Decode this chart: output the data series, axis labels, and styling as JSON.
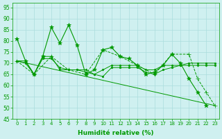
{
  "background_color": "#cff0f0",
  "grid_color": "#aadddd",
  "line_color": "#009900",
  "xlabel": "Humidité relative (%)",
  "ylim": [
    45,
    97
  ],
  "xlim": [
    -0.5,
    23.5
  ],
  "yticks": [
    45,
    50,
    55,
    60,
    65,
    70,
    75,
    80,
    85,
    90,
    95
  ],
  "xticks": [
    0,
    1,
    2,
    3,
    4,
    5,
    6,
    7,
    8,
    9,
    10,
    11,
    12,
    13,
    14,
    15,
    16,
    17,
    18,
    19,
    20,
    21,
    22,
    23
  ],
  "series": [
    {
      "x": [
        0,
        1,
        2,
        3,
        4,
        5,
        6,
        7,
        8,
        9,
        10,
        11,
        12,
        13,
        14,
        15,
        16,
        17,
        18,
        19,
        20,
        21,
        22
      ],
      "y": [
        81,
        71,
        65,
        73,
        86,
        79,
        87,
        78,
        65,
        67,
        76,
        77,
        73,
        72,
        69,
        65,
        66,
        69,
        74,
        70,
        63,
        57,
        51
      ],
      "marker": "*",
      "markersize": 4,
      "linestyle": "-",
      "linewidth": 0.8
    },
    {
      "x": [
        0,
        1,
        2,
        3,
        4,
        5,
        6,
        7,
        8,
        9,
        10,
        11,
        12,
        13,
        14,
        15,
        16,
        17,
        18,
        19,
        20,
        21,
        22,
        23
      ],
      "y": [
        71,
        71,
        65,
        73,
        73,
        67,
        67,
        67,
        67,
        65,
        67,
        69,
        69,
        69,
        69,
        67,
        67,
        69,
        69,
        69,
        69,
        69,
        69,
        69
      ],
      "marker": "D",
      "markersize": 1.5,
      "linestyle": "-",
      "linewidth": 0.7
    },
    {
      "x": [
        0,
        1,
        2,
        3,
        4,
        5,
        6,
        7,
        8,
        9,
        10,
        11,
        12,
        13,
        14,
        15,
        16,
        17,
        18,
        19,
        20,
        21,
        22,
        23
      ],
      "y": [
        71,
        70,
        65,
        72,
        72,
        68,
        67,
        67,
        66,
        65,
        64,
        68,
        68,
        68,
        68,
        66,
        65,
        67,
        68,
        69,
        70,
        70,
        70,
        70
      ],
      "marker": "s",
      "markersize": 1.5,
      "linestyle": "-",
      "linewidth": 0.7
    },
    {
      "x": [
        0,
        2,
        4,
        6,
        8,
        10,
        12,
        14,
        16,
        18,
        20,
        21,
        22,
        23
      ],
      "y": [
        71,
        65,
        73,
        67,
        65,
        76,
        73,
        69,
        65,
        74,
        74,
        63,
        57,
        51
      ],
      "marker": "+",
      "markersize": 4,
      "linestyle": "--",
      "linewidth": 0.7
    },
    {
      "x": [
        0,
        23
      ],
      "y": [
        71,
        51
      ],
      "marker": null,
      "markersize": 0,
      "linestyle": "-",
      "linewidth": 0.7
    }
  ]
}
